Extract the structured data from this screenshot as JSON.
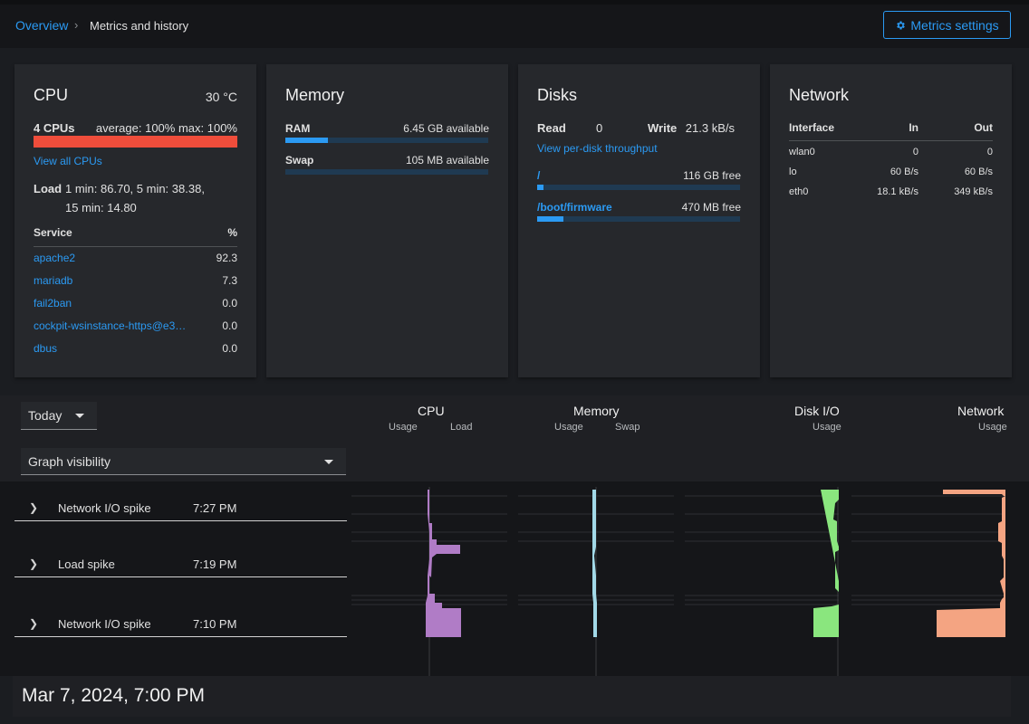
{
  "breadcrumb": {
    "overview": "Overview",
    "separator": "›",
    "current": "Metrics and history"
  },
  "metrics_settings": {
    "label": "Metrics settings",
    "icon": "gear-icon"
  },
  "cpu": {
    "title": "CPU",
    "temperature": "30 °C",
    "count": "4 CPUs",
    "usage": "average: 100% max: 100%",
    "usage_fraction": 1.0,
    "view_all": "View all CPUs",
    "load_label": "Load",
    "load_line1": "1 min: 86.70, 5 min: 38.38,",
    "load_line2": "15 min: 14.80",
    "service_header": "Service",
    "percent_header": "%",
    "services": [
      {
        "name": "apache2",
        "value": "92.3"
      },
      {
        "name": "mariadb",
        "value": "7.3"
      },
      {
        "name": "fail2ban",
        "value": "0.0"
      },
      {
        "name": "cockpit-wsinstance-https@e3…",
        "value": "0.0"
      },
      {
        "name": "dbus",
        "value": "0.0"
      }
    ]
  },
  "memory": {
    "title": "Memory",
    "ram": {
      "label": "RAM",
      "value": "6.45 GB available",
      "used_fraction": 0.21
    },
    "swap": {
      "label": "Swap",
      "value": "105 MB available",
      "used_fraction": 0.0
    }
  },
  "disks": {
    "title": "Disks",
    "read_label": "Read",
    "read_value": "0",
    "write_label": "Write",
    "write_value": "21.3 kB/s",
    "per_disk_link": "View per-disk throughput",
    "mounts": [
      {
        "path": "/",
        "free": "116 GB free",
        "used_fraction": 0.03
      },
      {
        "path": "/boot/firmware",
        "free": "470 MB free",
        "used_fraction": 0.13
      }
    ]
  },
  "network": {
    "title": "Network",
    "interface_header": "Interface",
    "in_header": "In",
    "out_header": "Out",
    "interfaces": [
      {
        "name": "wlan0",
        "in": "0",
        "out": "0"
      },
      {
        "name": "lo",
        "in": "60 B/s",
        "out": "60 B/s"
      },
      {
        "name": "eth0",
        "in": "18.1 kB/s",
        "out": "349 kB/s"
      }
    ]
  },
  "history": {
    "range": "Today",
    "graph_visibility": "Graph visibility",
    "columns": [
      {
        "title": "CPU",
        "subs": [
          "Usage",
          "Load"
        ]
      },
      {
        "title": "Memory",
        "subs": [
          "Usage",
          "Swap"
        ]
      },
      {
        "title": "Disk I/O",
        "subs": [
          "Usage"
        ]
      },
      {
        "title": "Network",
        "subs": [
          "Usage"
        ]
      }
    ],
    "events": [
      {
        "label": "Network I/O spike",
        "time": "7:27 PM"
      },
      {
        "label": "Load spike",
        "time": "7:19 PM"
      },
      {
        "label": "Network I/O spike",
        "time": "7:10 PM"
      }
    ],
    "hour_label": "Mar 7, 2024, 7:00 PM",
    "colors": {
      "cpu": "#b07cc6",
      "memory": "#a2d9e8",
      "disk": "#8ae67e",
      "network": "#f4a482"
    }
  }
}
